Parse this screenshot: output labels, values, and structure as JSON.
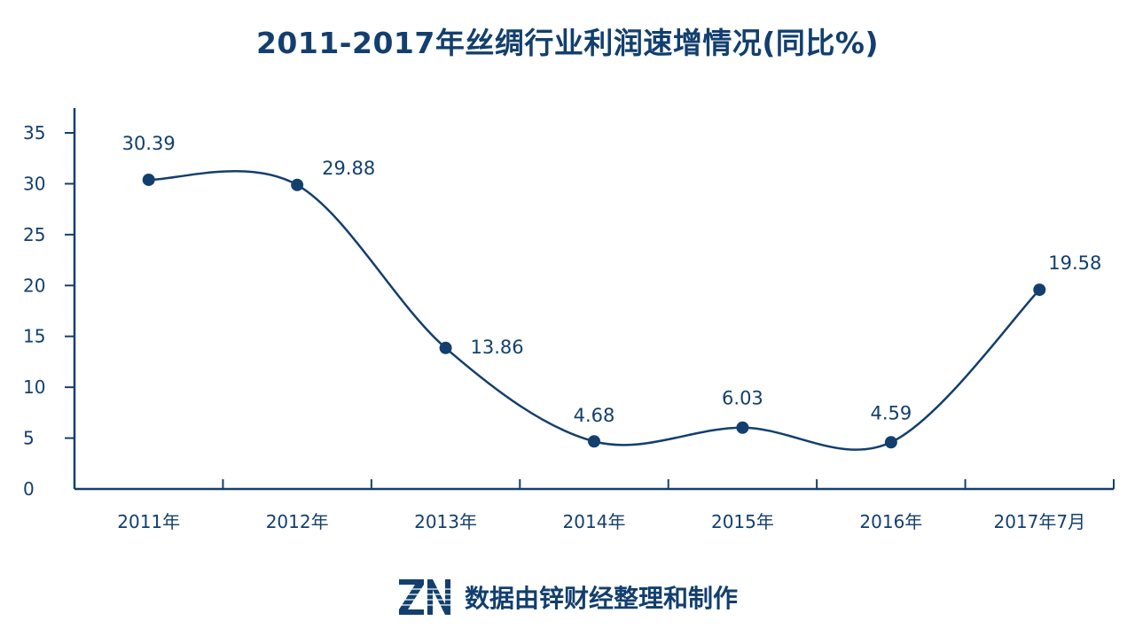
{
  "title": "2011-2017年丝绸行业利润速增情况(同比%)",
  "footer": {
    "text": "数据由锌财经整理和制作",
    "logo": "ZN"
  },
  "colors": {
    "primary": "#123f6e",
    "background": "#ffffff"
  },
  "chart_data": {
    "type": "line",
    "title": "2011-2017年丝绸行业利润速增情况(同比%)",
    "xlabel": "",
    "ylabel": "",
    "categories": [
      "2011年",
      "2012年",
      "2013年",
      "2014年",
      "2015年",
      "2016年",
      "2017年7月"
    ],
    "series": [
      {
        "values": [
          30.39,
          29.88,
          13.86,
          4.68,
          6.03,
          4.59,
          19.58
        ],
        "labels": [
          "30.39",
          "29.88",
          "13.86",
          "4.68",
          "6.03",
          "4.59",
          "19.58"
        ]
      }
    ],
    "ylim": [
      0,
      35
    ],
    "yticks": [
      "0",
      "5",
      "10",
      "15",
      "20",
      "25",
      "30",
      "35"
    ],
    "smooth": true,
    "grid": false,
    "legend": "none"
  }
}
